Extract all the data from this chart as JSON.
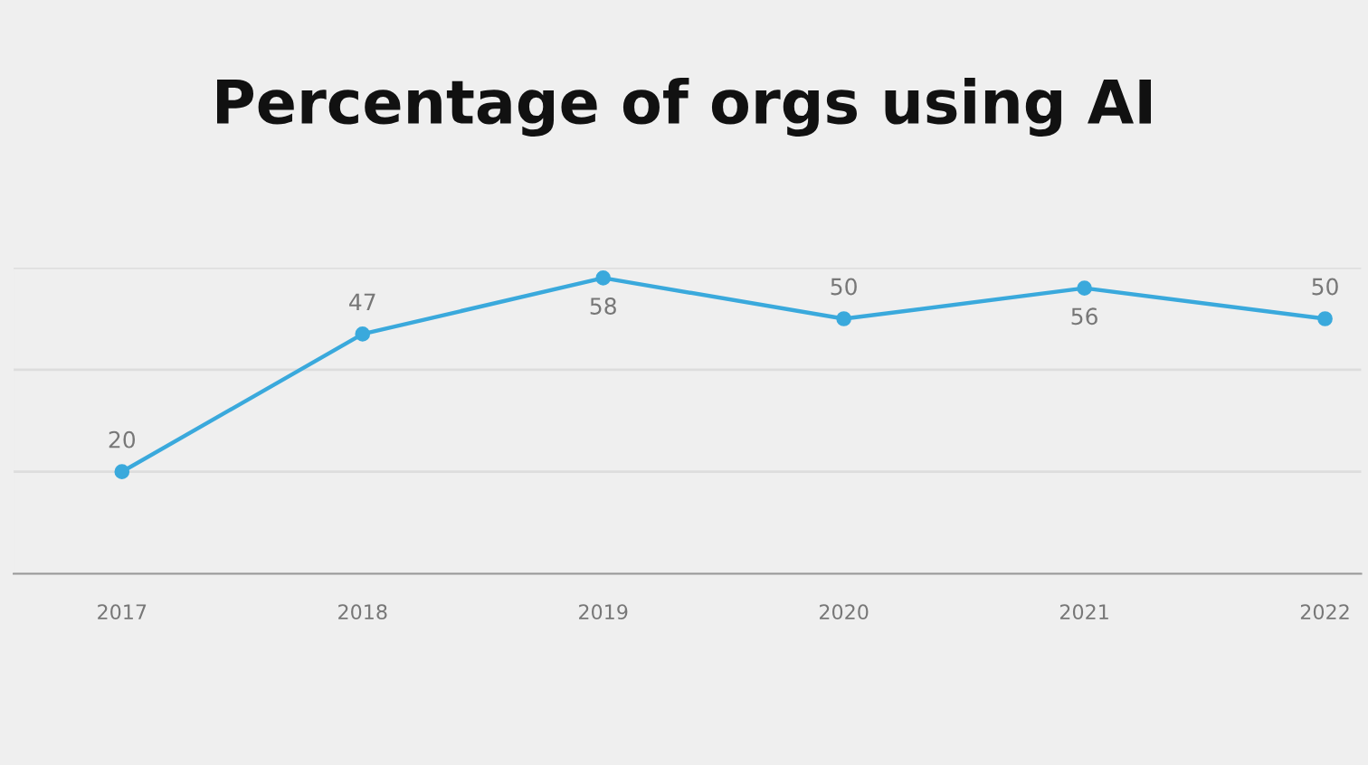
{
  "chart_data": {
    "type": "line",
    "title": "Percentage of orgs using AI",
    "categories": [
      "2017",
      "2018",
      "2019",
      "2020",
      "2021",
      "2022"
    ],
    "series": [
      {
        "color": "#3aa9dc",
        "values": [
          20,
          47,
          58,
          50,
          56,
          50
        ]
      }
    ],
    "ylim": [
      0,
      60
    ],
    "yticks": [
      {
        "value": 0,
        "label": null
      },
      {
        "value": 20,
        "label": null
      },
      {
        "value": 40,
        "label": null
      },
      {
        "value": 60,
        "label": null
      }
    ],
    "grid": "y",
    "marker": "circle",
    "line_style": "solid",
    "data_labels": true,
    "tick_labels": "x"
  }
}
